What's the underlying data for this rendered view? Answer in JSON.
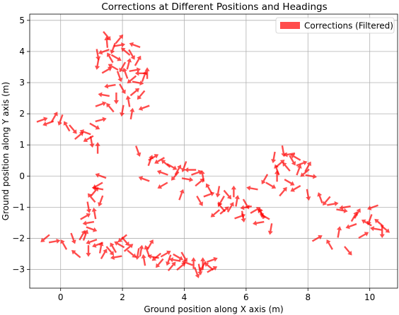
{
  "chart_data": {
    "type": "scatter",
    "title": "Corrections at Different Positions and Headings",
    "xlabel": "Ground position along X axis (m)",
    "ylabel": "Ground position along Y axis (m)",
    "xlim": [
      -1.0,
      10.9
    ],
    "ylim": [
      -3.6,
      5.2
    ],
    "xticks": [
      0,
      2,
      4,
      6,
      8,
      10
    ],
    "yticks": [
      -3,
      -2,
      -1,
      0,
      1,
      2,
      3,
      4,
      5
    ],
    "grid": true,
    "legend": {
      "placement": "top-right",
      "entries": [
        "Corrections (Filtered)"
      ]
    },
    "series": [
      {
        "name": "Corrections (Filtered)",
        "marker": "arrow",
        "color": "#ff0000",
        "alpha": 0.7,
        "x": [
          -0.6,
          -0.4,
          -0.2,
          0.0,
          0.2,
          0.4,
          0.6,
          0.8,
          1.0,
          1.2,
          0.9,
          1.1,
          1.3,
          1.5,
          1.7,
          1.9,
          2.1,
          2.3,
          2.5,
          1.4,
          1.8,
          2.2,
          2.6,
          1.2,
          1.5,
          1.7,
          1.9,
          2.1,
          2.3,
          2.5,
          2.7,
          1.6,
          2.0,
          2.4,
          1.4,
          1.8,
          2.2,
          2.6,
          1.3,
          1.6,
          2.0,
          2.3,
          2.7,
          1.5,
          1.9,
          2.4,
          1.2,
          1.6,
          2.0,
          2.4,
          2.8,
          3.0,
          3.2,
          3.4,
          3.6,
          3.8,
          4.0,
          4.2,
          4.4,
          4.6,
          2.5,
          2.9,
          3.3,
          3.7,
          4.1,
          4.5,
          4.8,
          5.1,
          5.4,
          5.7,
          6.0,
          6.3,
          6.6,
          5.0,
          5.5,
          6.0,
          6.5,
          4.8,
          5.2,
          5.6,
          6.2,
          6.8,
          7.2,
          7.6,
          8.0,
          8.4,
          8.8,
          9.2,
          9.6,
          10.0,
          10.3,
          10.5,
          9.0,
          9.4,
          9.8,
          10.2,
          6.9,
          7.1,
          7.3,
          7.5,
          7.7,
          7.9,
          8.1,
          7.0,
          7.4,
          7.8,
          7.2,
          7.6,
          8.0,
          6.6,
          7.0,
          7.4,
          1.3,
          1.2,
          1.1,
          1.0,
          0.9,
          0.8,
          0.9,
          1.1,
          1.3,
          1.0,
          0.8,
          1.2,
          -0.5,
          -0.2,
          0.1,
          0.4,
          0.7,
          1.0,
          1.3,
          1.6,
          1.9,
          2.2,
          2.5,
          2.8,
          3.1,
          3.4,
          3.7,
          4.0,
          4.3,
          4.6,
          4.9,
          0.5,
          0.9,
          1.4,
          1.8,
          2.3,
          2.7,
          3.2,
          3.6,
          4.1,
          4.5,
          4.9,
          1.2,
          1.7,
          2.1,
          2.6,
          3.0,
          3.5,
          3.9,
          4.4,
          4.8,
          2.0,
          2.9,
          3.8,
          4.6,
          6.4,
          6.8,
          5.8,
          5.2,
          4.5,
          3.9,
          3.3,
          2.7,
          5.3,
          5.9,
          6.5,
          8.6,
          9.1,
          9.5,
          9.9,
          10.1,
          10.4,
          8.3,
          8.7,
          9.3
        ],
        "y": [
          1.8,
          1.7,
          1.9,
          1.8,
          1.6,
          1.5,
          1.3,
          1.4,
          1.1,
          0.9,
          1.2,
          1.6,
          1.8,
          4.3,
          4.1,
          4.2,
          4.0,
          3.9,
          3.7,
          4.0,
          3.8,
          3.6,
          3.3,
          3.6,
          3.4,
          3.5,
          3.2,
          3.3,
          3.1,
          3.0,
          3.2,
          2.9,
          2.8,
          2.7,
          2.6,
          2.5,
          2.4,
          2.6,
          2.3,
          2.2,
          2.1,
          2.0,
          2.2,
          4.5,
          4.4,
          4.2,
          3.9,
          3.8,
          3.5,
          3.4,
          3.3,
          0.6,
          0.5,
          0.4,
          0.3,
          0.2,
          0.3,
          0.2,
          0.1,
          0.0,
          0.8,
          0.5,
          0.1,
          0.0,
          -0.1,
          -0.2,
          -0.4,
          -0.5,
          -0.6,
          -0.8,
          -1.0,
          -1.1,
          -1.3,
          -1.2,
          -1.0,
          -0.9,
          -1.2,
          -0.6,
          -0.8,
          -0.5,
          -0.4,
          -0.3,
          -0.5,
          -0.4,
          -0.6,
          -0.7,
          -0.9,
          -1.0,
          -1.2,
          -1.4,
          -1.5,
          -1.7,
          -1.8,
          -1.6,
          -1.9,
          -1.7,
          0.6,
          0.4,
          0.3,
          0.5,
          0.2,
          0.1,
          0.0,
          0.2,
          0.7,
          0.4,
          0.8,
          0.6,
          0.3,
          -0.1,
          0.0,
          -0.2,
          0.0,
          -0.3,
          -0.5,
          -0.7,
          -1.0,
          -1.3,
          -1.5,
          -1.2,
          -0.8,
          -1.7,
          -1.9,
          -0.4,
          -2.0,
          -2.1,
          -2.2,
          -2.0,
          -1.9,
          -2.1,
          -2.3,
          -2.4,
          -2.2,
          -2.3,
          -2.5,
          -2.4,
          -2.6,
          -2.5,
          -2.7,
          -2.6,
          -2.8,
          -2.9,
          -2.7,
          -2.5,
          -2.4,
          -2.5,
          -2.6,
          -2.5,
          -2.7,
          -2.8,
          -2.9,
          -2.8,
          -3.0,
          -3.0,
          -2.2,
          -2.3,
          -2.1,
          -2.4,
          -2.6,
          -2.7,
          -2.9,
          -3.1,
          -2.9,
          -2.0,
          -2.2,
          -2.6,
          -2.8,
          -1.5,
          -1.7,
          -1.3,
          -1.0,
          -0.8,
          -0.6,
          -0.3,
          -0.1,
          -1.1,
          -1.3,
          -1.2,
          -0.8,
          -1.1,
          -1.3,
          -1.5,
          -1.0,
          -1.8,
          -2.0,
          -2.2,
          -2.4
        ],
        "angle_deg": [
          20,
          200,
          60,
          250,
          120,
          310,
          40,
          160,
          280,
          90,
          210,
          330,
          15,
          95,
          250,
          10,
          140,
          300,
          60,
          200,
          330,
          75,
          180,
          260,
          30,
          150,
          290,
          110,
          220,
          350,
          70,
          190,
          300,
          40,
          170,
          270,
          100,
          230,
          20,
          130,
          260,
          80,
          200,
          310,
          50,
          160,
          280,
          120,
          240,
          10,
          90,
          30,
          210,
          140,
          330,
          60,
          250,
          180,
          20,
          100,
          290,
          70,
          160,
          230,
          350,
          40,
          120,
          260,
          310,
          80,
          190,
          30,
          150,
          220,
          60,
          300,
          130,
          20,
          240,
          90,
          170,
          330,
          50,
          210,
          280,
          110,
          10,
          190,
          60,
          250,
          140,
          320,
          80,
          200,
          30,
          170,
          260,
          40,
          130,
          300,
          70,
          220,
          350,
          110,
          190,
          20,
          280,
          150,
          60,
          240,
          90,
          330,
          160,
          210,
          50,
          130,
          280,
          30,
          190,
          100,
          250,
          340,
          70,
          170,
          220,
          10,
          120,
          290,
          60,
          200,
          80,
          310,
          150,
          40,
          260,
          110,
          220,
          30,
          170,
          300,
          90,
          240,
          20,
          140,
          270,
          60,
          190,
          320,
          100,
          230,
          50,
          160,
          280,
          30,
          200,
          120,
          310,
          80,
          170,
          250,
          40,
          290,
          140,
          220,
          60,
          330,
          90,
          190,
          260,
          20,
          130,
          300,
          70,
          210,
          160,
          40,
          280,
          110,
          230,
          350,
          60,
          150,
          200,
          270,
          30,
          120,
          310
        ]
      }
    ]
  }
}
